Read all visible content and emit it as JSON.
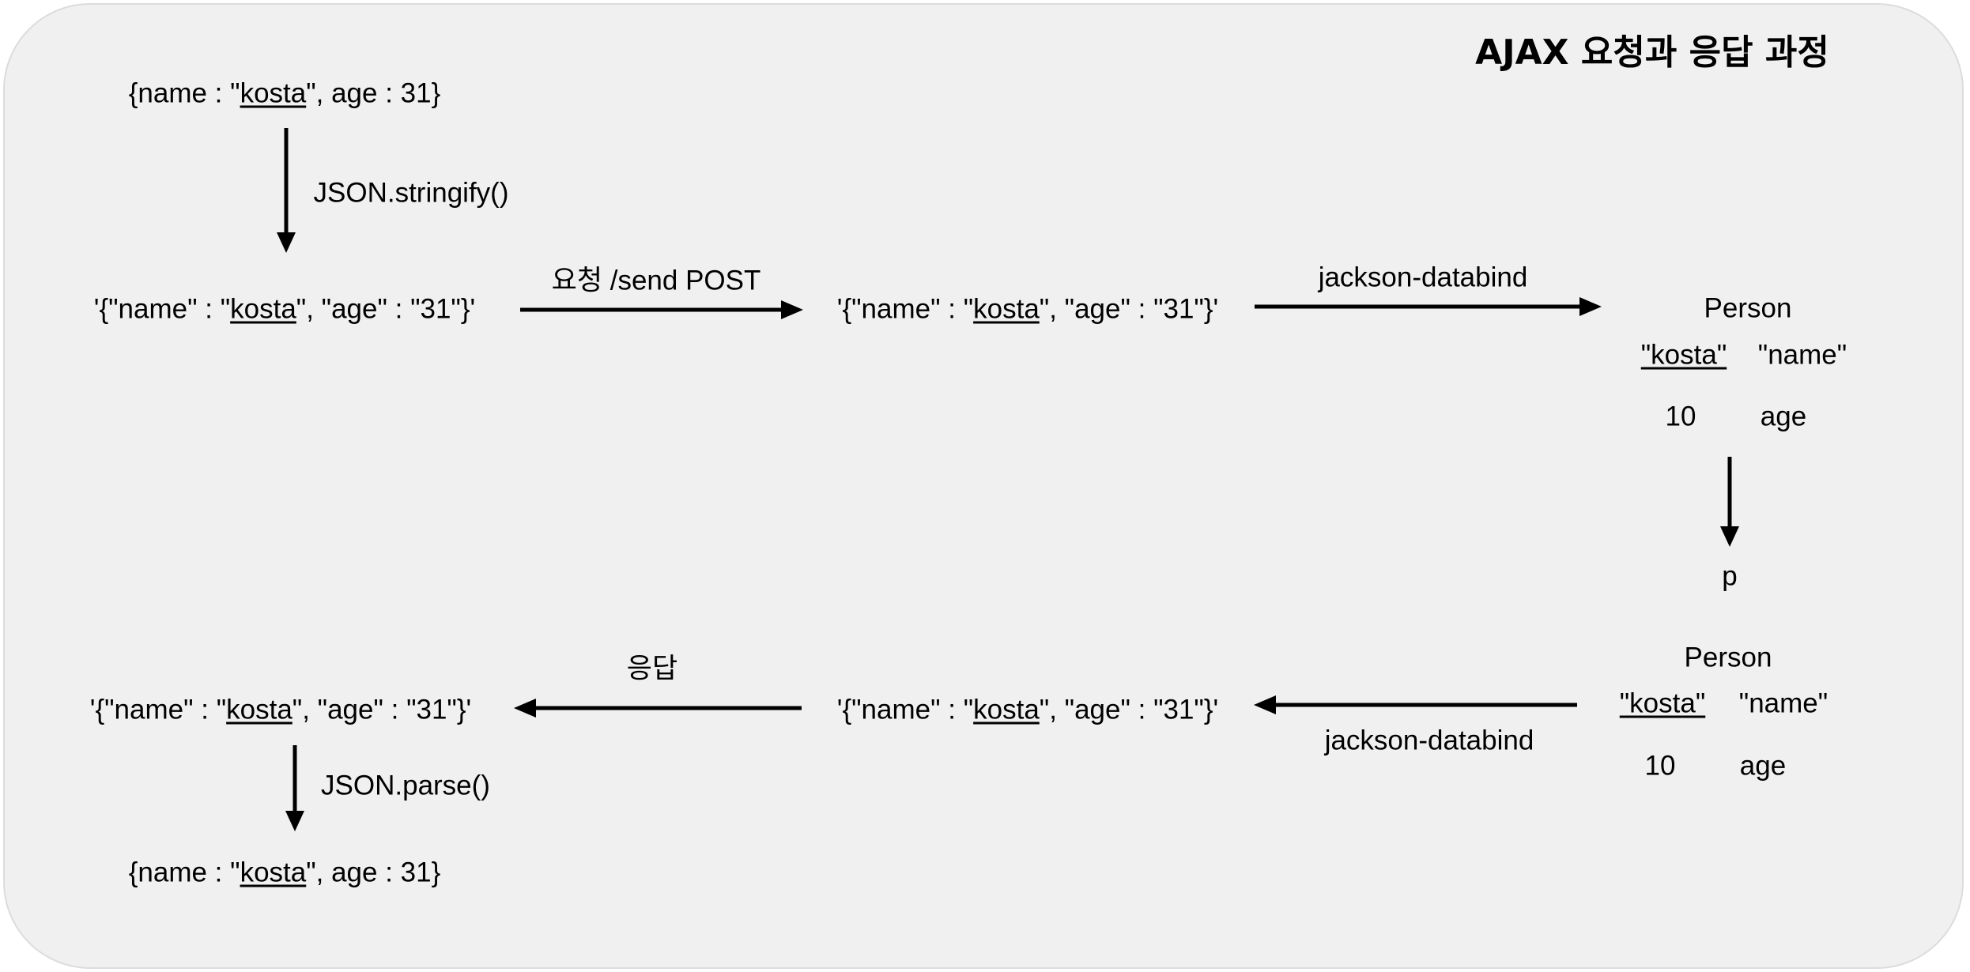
{
  "title": "AJAX 요청과 응답 과정",
  "js_object": {
    "before": "{name : \"",
    "name": "kosta",
    "after": "\", age : 31}"
  },
  "json_string": {
    "before": "'{\"name\" : \"",
    "name": "kosta",
    "after": "\", \"age\" : \"31\"}'"
  },
  "labels": {
    "stringify": "JSON.stringify()",
    "request": "요청 /send POST",
    "databind": "jackson-databind",
    "response": "응답",
    "parse": "JSON.parse()",
    "variable": "p"
  },
  "person": {
    "class_name": "Person",
    "name_value": "\"kosta\"",
    "name_field": "\"name\"",
    "age_value": "10",
    "age_field": "age"
  }
}
